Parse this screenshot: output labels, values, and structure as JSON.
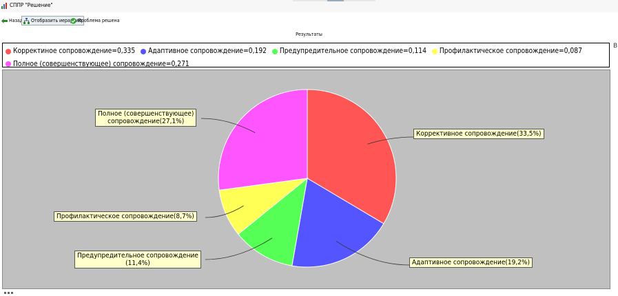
{
  "window": {
    "title": "СППР \"Решение\""
  },
  "toolbar": {
    "back_label": "Назад",
    "hierarchy_label": "Отобразить иерархию",
    "solved_label": "Проблема решена"
  },
  "panel": {
    "title": "Результаты"
  },
  "chart_data": {
    "type": "pie",
    "slices": [
      {
        "name": "Корректиное сопровождение",
        "legend": "Корректиное сопровождение=0,335",
        "label": "Коррективное сопровождение(33,5%)",
        "value": 0.335,
        "color": "#ff5555"
      },
      {
        "name": "Адаптивное сопровождение",
        "legend": "Адаптивное сопровождение=0,192",
        "label": "Адаптивное сопровождение(19,2%)",
        "value": 0.192,
        "color": "#5555ff"
      },
      {
        "name": "Предупредительное сопровождение",
        "legend": "Предупредительное сопровождение=0,114",
        "label_line1": "Предупредительное сопровождение",
        "label_line2": "(11,4%)",
        "value": 0.114,
        "color": "#55ff55"
      },
      {
        "name": "Профилактическое сопровождение",
        "legend": "Профилактическое сопровождение=0,087",
        "label": "Профилактическое сопровождение(8,7%)",
        "value": 0.087,
        "color": "#ffff55"
      },
      {
        "name": "Полное (совершенствующее) сопровождение",
        "legend": "Полное (совершенствующее) сопровождение=0,271",
        "label_line1": "Полное (совершенствующее)",
        "label_line2": "сопровождение(27,1%)",
        "value": 0.271,
        "color": "#ff55ff"
      }
    ],
    "legend_position": "top"
  }
}
